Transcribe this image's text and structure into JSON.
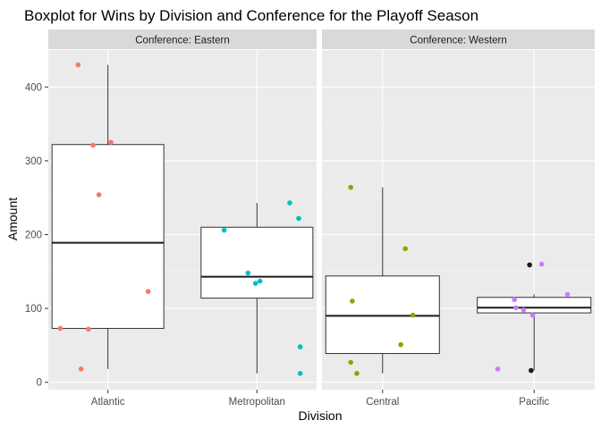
{
  "chart_data": {
    "type": "boxplot",
    "title": "Boxplot for Wins by Division and Conference for the Playoff Season",
    "xlabel": "Division",
    "ylabel": "Amount",
    "ylim": [
      -10,
      450
    ],
    "yticks": [
      0,
      100,
      200,
      300,
      400
    ],
    "grid": true,
    "legend": "none",
    "facets": [
      {
        "label": "Conference: Eastern",
        "categories": [
          {
            "name": "Atlantic",
            "color": "#F8766D",
            "box": {
              "min": 18,
              "q1": 73,
              "median": 189,
              "q3": 322,
              "max": 430
            },
            "points": [
              {
                "dx": -0.2,
                "y": 430
              },
              {
                "dx": -0.1,
                "y": 321
              },
              {
                "dx": 0.02,
                "y": 325
              },
              {
                "dx": -0.06,
                "y": 254
              },
              {
                "dx": 0.27,
                "y": 123
              },
              {
                "dx": -0.32,
                "y": 73
              },
              {
                "dx": -0.13,
                "y": 72
              },
              {
                "dx": -0.18,
                "y": 18
              }
            ]
          },
          {
            "name": "Metropolitan",
            "color": "#00BFC4",
            "box": {
              "min": 12,
              "q1": 114,
              "median": 143,
              "q3": 210,
              "max": 243
            },
            "points": [
              {
                "dx": -0.22,
                "y": 206
              },
              {
                "dx": 0.22,
                "y": 243
              },
              {
                "dx": 0.28,
                "y": 222
              },
              {
                "dx": -0.06,
                "y": 148
              },
              {
                "dx": -0.01,
                "y": 134
              },
              {
                "dx": 0.02,
                "y": 137
              },
              {
                "dx": 0.29,
                "y": 48
              },
              {
                "dx": 0.29,
                "y": 12
              }
            ]
          }
        ]
      },
      {
        "label": "Conference: Western",
        "categories": [
          {
            "name": "Central",
            "color": "#7CAE00",
            "box": {
              "min": 12,
              "q1": 39,
              "median": 90,
              "q3": 144,
              "max": 264
            },
            "points": [
              {
                "dx": -0.21,
                "y": 264
              },
              {
                "dx": 0.15,
                "y": 181
              },
              {
                "dx": -0.2,
                "y": 110
              },
              {
                "dx": 0.2,
                "y": 91
              },
              {
                "dx": 0.12,
                "y": 51
              },
              {
                "dx": -0.21,
                "y": 27
              },
              {
                "dx": -0.17,
                "y": 12
              }
            ]
          },
          {
            "name": "Pacific",
            "color": "#C77CFF",
            "box": {
              "min": 16,
              "q1": 94,
              "median": 101,
              "q3": 115,
              "max": 119
            },
            "points": [
              {
                "dx": -0.03,
                "y": 159,
                "color": "#1a1a1a"
              },
              {
                "dx": 0.05,
                "y": 160
              },
              {
                "dx": 0.22,
                "y": 119
              },
              {
                "dx": -0.13,
                "y": 112
              },
              {
                "dx": -0.12,
                "y": 101
              },
              {
                "dx": -0.07,
                "y": 98
              },
              {
                "dx": -0.01,
                "y": 91
              },
              {
                "dx": -0.24,
                "y": 18
              },
              {
                "dx": -0.02,
                "y": 16,
                "color": "#1a1a1a"
              }
            ]
          }
        ]
      }
    ]
  }
}
